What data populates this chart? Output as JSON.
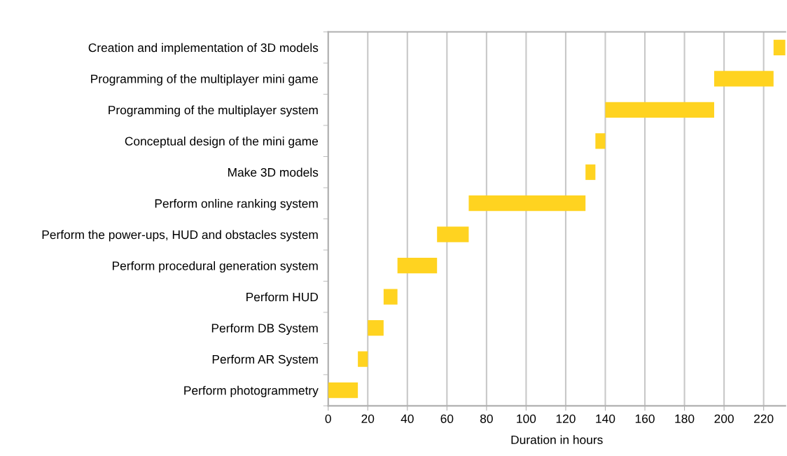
{
  "chart_data": {
    "type": "bar",
    "orientation": "horizontal",
    "xlabel": "Duration in hours",
    "categories": [
      "Creation and implementation of 3D models",
      "Programming of the multiplayer mini game",
      "Programming of the multiplayer system",
      "Conceptual design of the mini game",
      "Make 3D models",
      "Perform online ranking system",
      "Perform the power-ups, HUD and obstacles system",
      "Perform procedural generation system",
      "Perform HUD",
      "Perform DB System",
      "Perform AR System",
      "Perform photogrammetry"
    ],
    "base": [
      225,
      195,
      140,
      135,
      130,
      71,
      55,
      35,
      28,
      20,
      15,
      0
    ],
    "values": [
      6,
      30,
      55,
      5,
      5,
      59,
      16,
      20,
      7,
      8,
      5,
      15
    ],
    "color": "#ffd320",
    "xlim": [
      0,
      231
    ],
    "xticks": [
      0,
      20,
      40,
      60,
      80,
      100,
      120,
      140,
      160,
      180,
      200,
      220
    ],
    "grid": "x",
    "legend": false
  }
}
